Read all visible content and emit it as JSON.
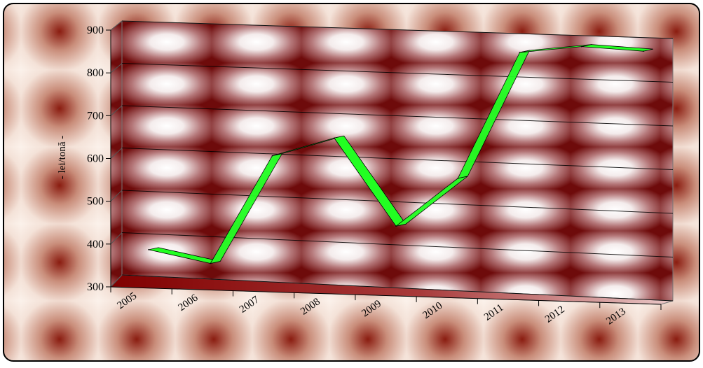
{
  "chart_data": {
    "type": "line",
    "categories": [
      "2005",
      "2006",
      "2007",
      "2008",
      "2009",
      "2010",
      "2011",
      "2012",
      "2013"
    ],
    "series": [
      {
        "values": [
          368,
          342,
          601,
          648,
          448,
          565,
          862,
          880,
          874
        ]
      }
    ],
    "ylabel": "- lei/tonă -",
    "ylim": [
      300,
      900
    ],
    "yticks": [
      "300",
      "400",
      "500",
      "600",
      "700",
      "800",
      "900"
    ],
    "grid": true,
    "legend": "none",
    "colors": {
      "line": "#22ff22",
      "floor": "#800000",
      "tile_dark": "#7a0f0f",
      "tile_light": "#ffffff",
      "outer_bg": "#f1dcd2"
    }
  }
}
